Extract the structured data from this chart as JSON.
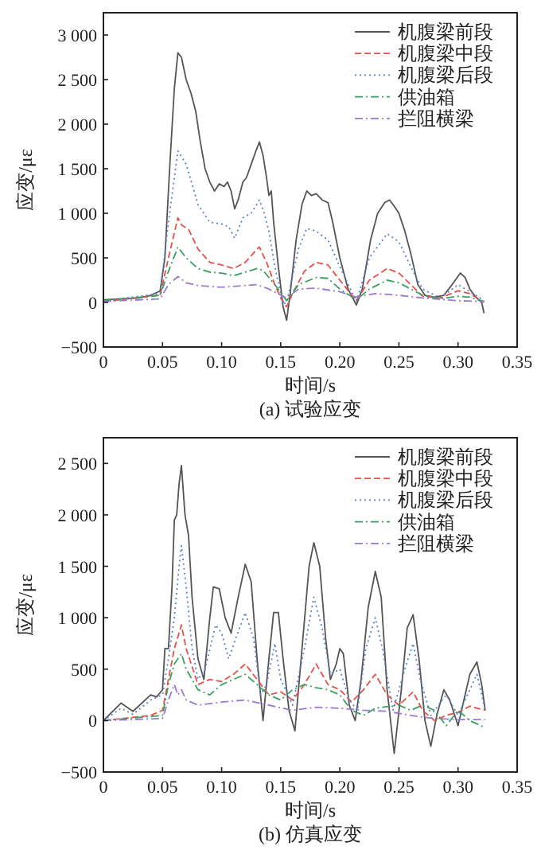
{
  "chart_data": [
    {
      "type": "line",
      "title": "(a) 试验应变",
      "xlabel": "时间/s",
      "ylabel": "应变/με",
      "legend": "top right",
      "grid": false,
      "xlim": [
        0,
        0.35
      ],
      "xticks": [
        0,
        0.05,
        {
          "value": 0.1,
          "label": "0.10"
        },
        0.15,
        {
          "value": 0.2,
          "label": "0.20"
        },
        0.25,
        {
          "value": 0.3,
          "label": "0.30"
        },
        0.35
      ],
      "ylim": [
        -500,
        3250
      ],
      "yticks": [
        {
          "value": -500,
          "label": "−500"
        },
        {
          "value": 0,
          "label": "0"
        },
        {
          "value": 500,
          "label": "500"
        },
        {
          "value": 1000,
          "label": "1 000"
        },
        {
          "value": 1500,
          "label": "1 500"
        },
        {
          "value": 2000,
          "label": "2 000"
        },
        {
          "value": 2500,
          "label": "2 500"
        },
        {
          "value": 3000,
          "label": "3 000"
        }
      ],
      "series": [
        {
          "name": "机腹梁前段",
          "color": "#555555",
          "line_style": "solid",
          "x": [
            0,
            0.03,
            0.04,
            0.048,
            0.052,
            0.056,
            0.06,
            0.063,
            0.066,
            0.07,
            0.074,
            0.078,
            0.082,
            0.086,
            0.09,
            0.094,
            0.098,
            0.102,
            0.105,
            0.108,
            0.111,
            0.114,
            0.118,
            0.121,
            0.125,
            0.129,
            0.132,
            0.135,
            0.138,
            0.14,
            0.142,
            0.144,
            0.148,
            0.152,
            0.155,
            0.158,
            0.163,
            0.168,
            0.172,
            0.176,
            0.18,
            0.185,
            0.19,
            0.194,
            0.2,
            0.207,
            0.214,
            0.219,
            0.226,
            0.232,
            0.238,
            0.242,
            0.246,
            0.25,
            0.255,
            0.26,
            0.266,
            0.272,
            0.28,
            0.288,
            0.295,
            0.302,
            0.306,
            0.31,
            0.315,
            0.32,
            0.322
          ],
          "values": [
            30,
            50,
            80,
            130,
            500,
            1500,
            2400,
            2800,
            2750,
            2500,
            2350,
            2150,
            1800,
            1500,
            1350,
            1250,
            1330,
            1300,
            1350,
            1250,
            1050,
            1150,
            1350,
            1400,
            1550,
            1700,
            1800,
            1650,
            1400,
            1200,
            1250,
            900,
            400,
            -50,
            -200,
            100,
            700,
            1100,
            1250,
            1200,
            1220,
            1150,
            1120,
            900,
            500,
            150,
            -30,
            150,
            700,
            1000,
            1120,
            1150,
            1080,
            1000,
            800,
            550,
            200,
            80,
            60,
            80,
            200,
            330,
            280,
            150,
            60,
            0,
            -120
          ]
        },
        {
          "name": "机腹梁中段",
          "color": "#e8504a",
          "line_style": "dashed",
          "x": [
            0,
            0.048,
            0.055,
            0.063,
            0.066,
            0.072,
            0.08,
            0.09,
            0.1,
            0.11,
            0.12,
            0.13,
            0.132,
            0.138,
            0.145,
            0.15,
            0.155,
            0.16,
            0.17,
            0.18,
            0.19,
            0.2,
            0.214,
            0.225,
            0.24,
            0.25,
            0.26,
            0.27,
            0.285,
            0.3,
            0.31,
            0.322
          ],
          "values": [
            10,
            80,
            500,
            950,
            870,
            820,
            600,
            450,
            420,
            380,
            450,
            600,
            620,
            450,
            200,
            50,
            -50,
            100,
            350,
            450,
            420,
            250,
            20,
            250,
            380,
            330,
            200,
            70,
            50,
            130,
            100,
            0
          ]
        },
        {
          "name": "机腹梁后段",
          "color": "#5a7fd0",
          "line_style": "dotted",
          "x": [
            0,
            0.048,
            0.055,
            0.063,
            0.07,
            0.08,
            0.09,
            0.1,
            0.106,
            0.111,
            0.118,
            0.125,
            0.132,
            0.136,
            0.14,
            0.145,
            0.152,
            0.155,
            0.165,
            0.172,
            0.18,
            0.19,
            0.2,
            0.214,
            0.225,
            0.24,
            0.25,
            0.26,
            0.27,
            0.285,
            0.3,
            0.31,
            0.322
          ],
          "values": [
            20,
            100,
            900,
            1700,
            1550,
            1100,
            900,
            880,
            850,
            720,
            950,
            1000,
            1150,
            1000,
            800,
            400,
            -20,
            0,
            600,
            830,
            800,
            700,
            400,
            10,
            500,
            770,
            680,
            400,
            150,
            50,
            200,
            120,
            20
          ]
        },
        {
          "name": "供油箱",
          "color": "#3aa060",
          "line_style": "dashdot",
          "x": [
            0,
            0.048,
            0.055,
            0.063,
            0.07,
            0.08,
            0.09,
            0.1,
            0.11,
            0.12,
            0.13,
            0.135,
            0.145,
            0.155,
            0.165,
            0.18,
            0.19,
            0.2,
            0.214,
            0.225,
            0.24,
            0.25,
            0.26,
            0.27,
            0.285,
            0.3,
            0.31,
            0.322
          ],
          "values": [
            20,
            80,
            350,
            620,
            500,
            380,
            340,
            330,
            300,
            340,
            380,
            360,
            200,
            20,
            200,
            280,
            270,
            150,
            30,
            150,
            250,
            220,
            150,
            80,
            40,
            70,
            60,
            10
          ]
        },
        {
          "name": "拦阻横梁",
          "color": "#9a7ad0",
          "line_style": "dashdot",
          "x": [
            0,
            0.048,
            0.055,
            0.063,
            0.07,
            0.08,
            0.1,
            0.12,
            0.13,
            0.14,
            0.155,
            0.165,
            0.18,
            0.2,
            0.214,
            0.23,
            0.25,
            0.27,
            0.3,
            0.322
          ],
          "values": [
            10,
            40,
            200,
            290,
            220,
            190,
            170,
            190,
            200,
            150,
            50,
            150,
            160,
            120,
            60,
            100,
            80,
            50,
            20,
            10
          ]
        }
      ]
    },
    {
      "type": "line",
      "title": "(b) 仿真应变",
      "xlabel": "时间/s",
      "ylabel": "应变/με",
      "legend": "top right",
      "grid": false,
      "xlim": [
        0,
        0.35
      ],
      "xticks": [
        0,
        0.05,
        {
          "value": 0.1,
          "label": "0.10"
        },
        0.15,
        {
          "value": 0.2,
          "label": "0.20"
        },
        0.25,
        {
          "value": 0.3,
          "label": "0.30"
        },
        0.35
      ],
      "ylim": [
        -500,
        2750
      ],
      "yticks": [
        {
          "value": -500,
          "label": "−500"
        },
        {
          "value": 0,
          "label": "0"
        },
        {
          "value": 500,
          "label": "500"
        },
        {
          "value": 1000,
          "label": "1 000"
        },
        {
          "value": 1500,
          "label": "1 500"
        },
        {
          "value": 2000,
          "label": "2 000"
        },
        {
          "value": 2500,
          "label": "2 500"
        }
      ],
      "series": [
        {
          "name": "机腹梁前段",
          "color": "#555555",
          "line_style": "solid",
          "x": [
            0,
            0.015,
            0.025,
            0.04,
            0.045,
            0.05,
            0.052,
            0.055,
            0.058,
            0.06,
            0.062,
            0.064,
            0.066,
            0.069,
            0.072,
            0.075,
            0.08,
            0.085,
            0.09,
            0.093,
            0.098,
            0.103,
            0.108,
            0.114,
            0.12,
            0.125,
            0.13,
            0.135,
            0.14,
            0.144,
            0.148,
            0.152,
            0.157,
            0.162,
            0.168,
            0.174,
            0.178,
            0.183,
            0.188,
            0.192,
            0.197,
            0.2,
            0.203,
            0.208,
            0.213,
            0.218,
            0.224,
            0.23,
            0.235,
            0.24,
            0.246,
            0.252,
            0.257,
            0.262,
            0.267,
            0.272,
            0.277,
            0.282,
            0.288,
            0.293,
            0.3,
            0.305,
            0.31,
            0.316,
            0.32,
            0.323
          ],
          "values": [
            0,
            170,
            90,
            250,
            230,
            300,
            700,
            700,
            1300,
            1950,
            2000,
            2300,
            2480,
            2000,
            1800,
            1200,
            600,
            400,
            1000,
            1300,
            1280,
            1000,
            850,
            1200,
            1520,
            1350,
            600,
            0,
            600,
            1050,
            1050,
            600,
            100,
            -100,
            700,
            1500,
            1730,
            1500,
            800,
            400,
            550,
            700,
            650,
            150,
            0,
            400,
            1100,
            1450,
            1200,
            300,
            -320,
            300,
            900,
            1030,
            600,
            0,
            -250,
            50,
            300,
            200,
            -50,
            200,
            450,
            570,
            350,
            100
          ]
        },
        {
          "name": "机腹梁中段",
          "color": "#e8504a",
          "line_style": "dashed",
          "x": [
            0,
            0.04,
            0.05,
            0.055,
            0.06,
            0.066,
            0.07,
            0.08,
            0.09,
            0.1,
            0.11,
            0.12,
            0.13,
            0.14,
            0.15,
            0.16,
            0.17,
            0.18,
            0.19,
            0.2,
            0.21,
            0.22,
            0.23,
            0.24,
            0.25,
            0.262,
            0.27,
            0.28,
            0.29,
            0.3,
            0.31,
            0.323
          ],
          "values": [
            0,
            50,
            100,
            400,
            700,
            930,
            700,
            350,
            400,
            380,
            450,
            550,
            400,
            250,
            280,
            200,
            350,
            550,
            350,
            300,
            180,
            300,
            450,
            250,
            150,
            280,
            100,
            0,
            50,
            80,
            140,
            100
          ]
        },
        {
          "name": "机腹梁后段",
          "color": "#5a7fd0",
          "line_style": "dotted",
          "x": [
            0,
            0.015,
            0.025,
            0.04,
            0.05,
            0.055,
            0.06,
            0.064,
            0.066,
            0.07,
            0.075,
            0.08,
            0.086,
            0.095,
            0.1,
            0.106,
            0.112,
            0.12,
            0.127,
            0.133,
            0.138,
            0.145,
            0.15,
            0.16,
            0.17,
            0.178,
            0.185,
            0.192,
            0.2,
            0.208,
            0.215,
            0.222,
            0.23,
            0.236,
            0.245,
            0.255,
            0.262,
            0.268,
            0.277,
            0.29,
            0.3,
            0.31,
            0.316,
            0.323
          ],
          "values": [
            0,
            120,
            60,
            200,
            250,
            600,
            1000,
            1500,
            1700,
            1300,
            700,
            400,
            500,
            930,
            850,
            600,
            800,
            1050,
            800,
            250,
            350,
            750,
            400,
            150,
            700,
            1200,
            900,
            450,
            500,
            200,
            100,
            700,
            1000,
            700,
            100,
            500,
            750,
            400,
            50,
            250,
            50,
            300,
            450,
            100
          ]
        },
        {
          "name": "供油箱",
          "color": "#3aa060",
          "line_style": "dashdot",
          "x": [
            0,
            0.05,
            0.055,
            0.06,
            0.066,
            0.07,
            0.08,
            0.09,
            0.1,
            0.11,
            0.12,
            0.13,
            0.14,
            0.15,
            0.16,
            0.17,
            0.18,
            0.19,
            0.2,
            0.21,
            0.22,
            0.23,
            0.25,
            0.26,
            0.27,
            0.28,
            0.29,
            0.3,
            0.31,
            0.323
          ],
          "values": [
            0,
            50,
            350,
            550,
            650,
            500,
            300,
            250,
            350,
            400,
            450,
            350,
            250,
            200,
            300,
            350,
            320,
            300,
            250,
            100,
            50,
            120,
            150,
            100,
            150,
            100,
            -50,
            100,
            0,
            -70
          ]
        },
        {
          "name": "拦阻横梁",
          "color": "#9a7ad0",
          "line_style": "dashdot",
          "x": [
            0,
            0.05,
            0.055,
            0.06,
            0.063,
            0.066,
            0.07,
            0.08,
            0.1,
            0.12,
            0.14,
            0.16,
            0.18,
            0.2,
            0.22,
            0.24,
            0.26,
            0.28,
            0.3,
            0.323
          ],
          "values": [
            0,
            20,
            200,
            350,
            250,
            300,
            200,
            150,
            180,
            200,
            150,
            100,
            130,
            120,
            100,
            90,
            50,
            20,
            10,
            10
          ]
        }
      ]
    }
  ]
}
